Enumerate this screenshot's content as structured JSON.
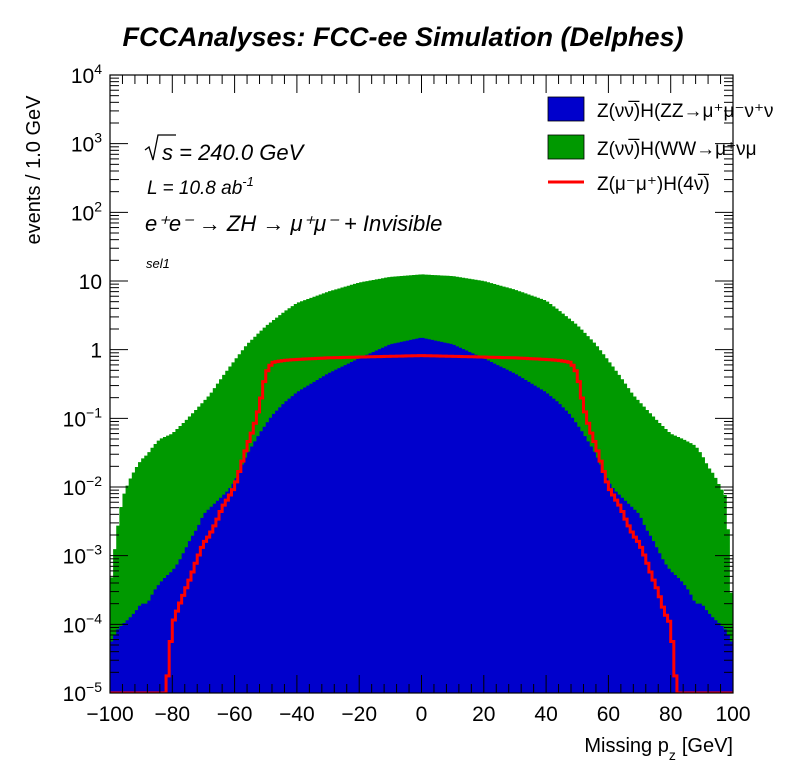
{
  "chart_data": {
    "type": "histogram",
    "title": "FCCAnalyses: FCC-ee Simulation (Delphes)",
    "xlabel": "Missing p",
    "xlabel_sub": "z",
    "xlabel_unit": "[GeV]",
    "ylabel": "events / 1.0 GeV",
    "xlim": [
      -100,
      100
    ],
    "ylim": [
      1e-05,
      10000
    ],
    "yscale": "log",
    "x_ticks": [
      "−100",
      "−80",
      "−60",
      "−40",
      "−20",
      "0",
      "20",
      "40",
      "60",
      "80",
      "100"
    ],
    "y_ticks": [
      {
        "base": "10",
        "exp": "4"
      },
      {
        "base": "10",
        "exp": "3"
      },
      {
        "base": "10",
        "exp": "2"
      },
      {
        "base": "10",
        "exp": ""
      },
      {
        "base": "1",
        "exp": ""
      },
      {
        "base": "10",
        "exp": "−1"
      },
      {
        "base": "10",
        "exp": "−2"
      },
      {
        "base": "10",
        "exp": "−3"
      },
      {
        "base": "10",
        "exp": "−4"
      },
      {
        "base": "10",
        "exp": "−5"
      }
    ],
    "annotations": {
      "sqrt_s": "s = 240.0 GeV",
      "lumi": "L = 10.8 ab",
      "lumi_exp": "-1",
      "process": "e⁺e⁻ → ZH → μ⁺μ⁻ + Invisible",
      "selection": "sel1"
    },
    "legend": {
      "position": "top-right",
      "entries": [
        {
          "label": "Z(νν̅)H(ZZ→μ⁺μ⁻ν⁺ν",
          "color": "#0000cc",
          "style": "fill"
        },
        {
          "label": "Z(νν̅)H(WW→μ⁺νμ",
          "color": "#009900",
          "style": "fill"
        },
        {
          "label": "Z(μ⁻μ⁺)H(4ν̅)",
          "color": "#ff0000",
          "style": "line"
        }
      ]
    },
    "series": [
      {
        "name": "Z(νν̅)H(WW→μ⁺νμ",
        "color": "#009900",
        "stacked": true,
        "points": [
          [
            -100,
            0.0003
          ],
          [
            -98,
            0.002
          ],
          [
            -96,
            0.007
          ],
          [
            -94,
            0.012
          ],
          [
            -92,
            0.018
          ],
          [
            -90,
            0.025
          ],
          [
            -88,
            0.03
          ],
          [
            -86,
            0.04
          ],
          [
            -84,
            0.05
          ],
          [
            -80,
            0.06
          ],
          [
            -76,
            0.09
          ],
          [
            -72,
            0.14
          ],
          [
            -68,
            0.22
          ],
          [
            -64,
            0.4
          ],
          [
            -60,
            0.7
          ],
          [
            -56,
            1.2
          ],
          [
            -50,
            2.2
          ],
          [
            -44,
            3.6
          ],
          [
            -40,
            4.8
          ],
          [
            -30,
            7.0
          ],
          [
            -20,
            9.5
          ],
          [
            -10,
            11.5
          ],
          [
            0,
            12.5
          ],
          [
            10,
            11.8
          ],
          [
            20,
            10.0
          ],
          [
            30,
            7.5
          ],
          [
            40,
            5.2
          ],
          [
            44,
            3.8
          ],
          [
            50,
            2.3
          ],
          [
            56,
            1.2
          ],
          [
            60,
            0.7
          ],
          [
            64,
            0.4
          ],
          [
            68,
            0.22
          ],
          [
            72,
            0.14
          ],
          [
            76,
            0.09
          ],
          [
            80,
            0.06
          ],
          [
            84,
            0.05
          ],
          [
            88,
            0.04
          ],
          [
            90,
            0.03
          ],
          [
            92,
            0.02
          ],
          [
            94,
            0.015
          ],
          [
            96,
            0.01
          ],
          [
            98,
            0.007
          ],
          [
            100,
            0.0001
          ]
        ]
      },
      {
        "name": "Z(νν̅)H(ZZ→μ⁺μ⁻ν⁺ν",
        "color": "#0000cc",
        "stacked": true,
        "points": [
          [
            -100,
            5e-05
          ],
          [
            -98,
            8e-05
          ],
          [
            -96,
            0.0001
          ],
          [
            -94,
            0.00012
          ],
          [
            -92,
            0.00015
          ],
          [
            -90,
            0.0002
          ],
          [
            -88,
            0.0002
          ],
          [
            -86,
            0.0003
          ],
          [
            -84,
            0.0004
          ],
          [
            -82,
            0.0005
          ],
          [
            -80,
            0.0006
          ],
          [
            -78,
            0.0008
          ],
          [
            -76,
            0.0012
          ],
          [
            -74,
            0.0018
          ],
          [
            -72,
            0.0025
          ],
          [
            -70,
            0.004
          ],
          [
            -66,
            0.006
          ],
          [
            -62,
            0.009
          ],
          [
            -60,
            0.012
          ],
          [
            -56,
            0.03
          ],
          [
            -52,
            0.06
          ],
          [
            -48,
            0.11
          ],
          [
            -44,
            0.17
          ],
          [
            -40,
            0.24
          ],
          [
            -30,
            0.45
          ],
          [
            -20,
            0.75
          ],
          [
            -10,
            1.2
          ],
          [
            0,
            1.5
          ],
          [
            10,
            1.2
          ],
          [
            20,
            0.75
          ],
          [
            30,
            0.45
          ],
          [
            40,
            0.24
          ],
          [
            44,
            0.17
          ],
          [
            48,
            0.11
          ],
          [
            52,
            0.06
          ],
          [
            56,
            0.03
          ],
          [
            60,
            0.012
          ],
          [
            62,
            0.009
          ],
          [
            66,
            0.006
          ],
          [
            70,
            0.004
          ],
          [
            72,
            0.0025
          ],
          [
            74,
            0.0018
          ],
          [
            76,
            0.0012
          ],
          [
            78,
            0.0008
          ],
          [
            80,
            0.0006
          ],
          [
            82,
            0.0005
          ],
          [
            84,
            0.0004
          ],
          [
            86,
            0.0003
          ],
          [
            88,
            0.0002
          ],
          [
            90,
            0.0002
          ],
          [
            92,
            0.00015
          ],
          [
            94,
            0.00012
          ],
          [
            96,
            0.0001
          ],
          [
            98,
            8e-05
          ],
          [
            100,
            5e-05
          ]
        ]
      },
      {
        "name": "Z(μ⁻μ⁺)H(4ν̅)",
        "color": "#ff0000",
        "stacked": false,
        "points": [
          [
            -100,
            1e-05
          ],
          [
            -82,
            1e-05
          ],
          [
            -80,
            0.0001
          ],
          [
            -78,
            0.00018
          ],
          [
            -76,
            0.0003
          ],
          [
            -74,
            0.0005
          ],
          [
            -72,
            0.0009
          ],
          [
            -70,
            0.0015
          ],
          [
            -68,
            0.002
          ],
          [
            -66,
            0.003
          ],
          [
            -64,
            0.005
          ],
          [
            -62,
            0.007
          ],
          [
            -60,
            0.01
          ],
          [
            -58,
            0.02
          ],
          [
            -56,
            0.04
          ],
          [
            -54,
            0.07
          ],
          [
            -52,
            0.15
          ],
          [
            -50,
            0.45
          ],
          [
            -48,
            0.65
          ],
          [
            -44,
            0.7
          ],
          [
            -40,
            0.72
          ],
          [
            -30,
            0.76
          ],
          [
            -20,
            0.78
          ],
          [
            -10,
            0.8
          ],
          [
            0,
            0.82
          ],
          [
            10,
            0.8
          ],
          [
            20,
            0.78
          ],
          [
            30,
            0.76
          ],
          [
            40,
            0.72
          ],
          [
            44,
            0.7
          ],
          [
            48,
            0.65
          ],
          [
            50,
            0.45
          ],
          [
            52,
            0.15
          ],
          [
            54,
            0.07
          ],
          [
            56,
            0.04
          ],
          [
            58,
            0.02
          ],
          [
            60,
            0.01
          ],
          [
            62,
            0.007
          ],
          [
            64,
            0.005
          ],
          [
            66,
            0.003
          ],
          [
            68,
            0.002
          ],
          [
            70,
            0.0015
          ],
          [
            72,
            0.0009
          ],
          [
            74,
            0.0005
          ],
          [
            76,
            0.0003
          ],
          [
            78,
            0.00015
          ],
          [
            80,
            0.0001
          ],
          [
            82,
            1e-05
          ],
          [
            100,
            1e-05
          ]
        ]
      }
    ]
  }
}
